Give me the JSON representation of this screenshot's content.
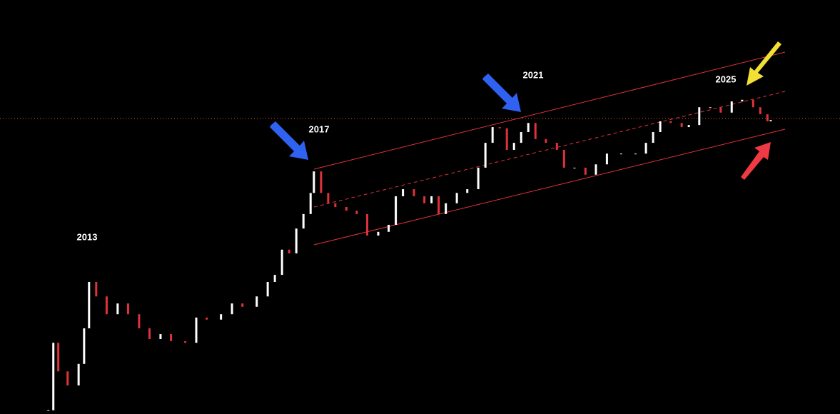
{
  "chart_data": {
    "type": "candlestick",
    "annotations": [
      "2013",
      "2017",
      "2021",
      "2025"
    ],
    "x": [
      2013.16,
      2013.25,
      2013.34,
      2013.51,
      2013.71,
      2013.81,
      2013.9,
      2014.03,
      2014.22,
      2014.42,
      2014.61,
      2014.81,
      2015.0,
      2015.2,
      2015.39,
      2015.65,
      2015.85,
      2016.04,
      2016.3,
      2016.5,
      2016.69,
      2016.95,
      2017.15,
      2017.28,
      2017.41,
      2017.54,
      2017.67,
      2017.8,
      2017.93,
      2017.99,
      2018.12,
      2018.25,
      2018.38,
      2018.58,
      2018.77,
      2018.96,
      2019.16,
      2019.35,
      2019.48,
      2019.61,
      2019.81,
      2020.0,
      2020.13,
      2020.26,
      2020.39,
      2020.59,
      2020.78,
      2020.98,
      2021.11,
      2021.24,
      2021.37,
      2021.5,
      2021.63,
      2021.76,
      2021.89,
      2022.02,
      2022.21,
      2022.41,
      2022.54,
      2022.73,
      2022.93,
      2023.12,
      2023.32,
      2023.58,
      2023.84,
      2024.03,
      2024.16,
      2024.29,
      2024.48,
      2024.68,
      2024.81,
      2025.0,
      2025.2,
      2025.39,
      2025.59,
      2025.78,
      2025.98,
      2026.11,
      2026.24,
      2026.3
    ],
    "values": [
      0.9,
      17.2,
      10.3,
      6.9,
      12.1,
      20.7,
      31.9,
      28.4,
      24.1,
      26.7,
      24.1,
      20.7,
      18.1,
      19.3,
      17.6,
      17.2,
      23.3,
      22.8,
      24.1,
      26.7,
      25.9,
      28.4,
      31.9,
      33.6,
      39.7,
      38.8,
      44.8,
      48.3,
      53.4,
      58.6,
      53.4,
      50.9,
      50.0,
      49.1,
      48.3,
      43.1,
      44.0,
      45.7,
      52.6,
      54.3,
      52.6,
      50.9,
      52.6,
      48.3,
      50.9,
      53.4,
      54.3,
      59.5,
      65.5,
      69.3,
      69.0,
      63.8,
      65.5,
      68.1,
      70.3,
      66.4,
      65.5,
      63.8,
      59.5,
      59.5,
      57.8,
      60.3,
      62.9,
      62.9,
      62.9,
      65.5,
      68.1,
      70.7,
      70.3,
      69.3,
      69.8,
      74.1,
      74.1,
      72.8,
      75.5,
      75.9,
      74.1,
      72.4,
      70.7,
      71.0
    ],
    "up_color": "#ffffff",
    "down_color": "#e0323a",
    "xlim": [
      2012.28,
      2027.56
    ],
    "ylim": [
      0,
      100
    ]
  }
}
